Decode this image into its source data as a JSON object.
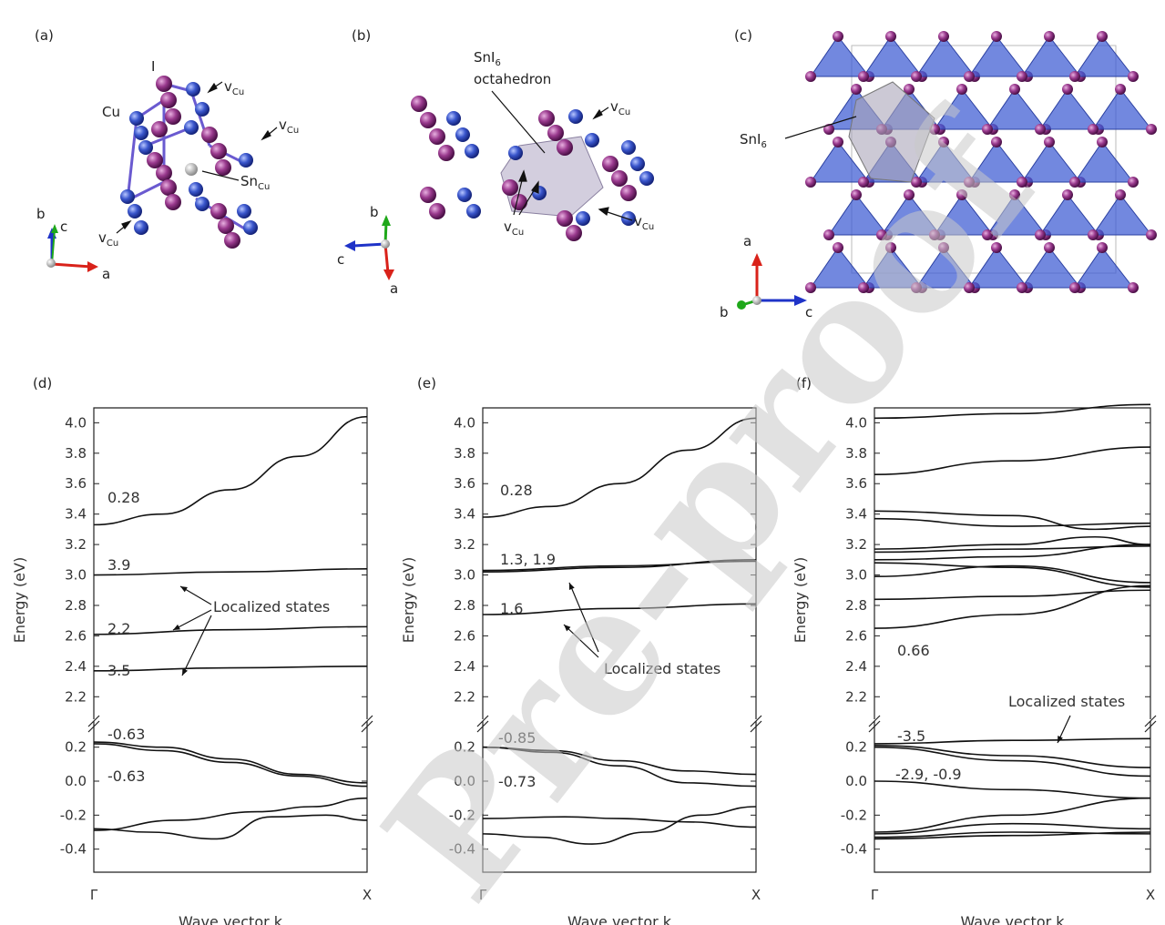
{
  "panels": {
    "a": "(a)",
    "b": "(b)",
    "c": "(c)",
    "d": "(d)",
    "e": "(e)",
    "f": "(f)"
  },
  "structure_a": {
    "label_I": "I",
    "label_Cu": "Cu",
    "vcu": "v",
    "vcu_sub": "Cu",
    "sncu": "Sn",
    "sncu_sub": "Cu",
    "axis_a": "a",
    "axis_b": "b",
    "axis_c": "c"
  },
  "structure_b": {
    "sni6_line1": "SnI",
    "sni6_sub": "6",
    "sni6_line2": "octahedron",
    "vcu": "v",
    "vcu_sub": "Cu",
    "axis_a": "a",
    "axis_b": "b",
    "axis_c": "c"
  },
  "structure_c": {
    "sni6": "SnI",
    "sni6_sub": "6",
    "axis_a": "a",
    "axis_b": "b",
    "axis_c": "c"
  },
  "watermark": "Pre-proof",
  "chart_data": [
    {
      "type": "line",
      "panel": "d",
      "xlabel": "Wave vector k",
      "ylabel": "Energy (eV)",
      "x_ticks": [
        "Γ",
        "X"
      ],
      "upper_yticks": [
        "2.2",
        "2.4",
        "2.6",
        "2.8",
        "3.0",
        "3.2",
        "3.4",
        "3.6",
        "3.8",
        "4.0"
      ],
      "lower_yticks": [
        "-0.4",
        "-0.2",
        "0.0",
        "0.2"
      ],
      "upper_ylim": [
        2.1,
        4.05
      ],
      "lower_ylim": [
        -0.45,
        0.3
      ],
      "axis_break": true,
      "annotations": [
        "0.28",
        "3.9",
        "2.2",
        "3.5",
        "-0.63",
        "-0.63"
      ],
      "localized_label": "Localized states",
      "series": [
        {
          "x": [
            0,
            0.25,
            0.5,
            0.75,
            1
          ],
          "values": [
            3.33,
            3.4,
            3.56,
            3.78,
            4.04
          ],
          "axis": "upper"
        },
        {
          "x": [
            0,
            0.5,
            1
          ],
          "values": [
            3.0,
            3.02,
            3.04
          ],
          "axis": "upper"
        },
        {
          "x": [
            0,
            0.5,
            1
          ],
          "values": [
            2.61,
            2.64,
            2.66
          ],
          "axis": "upper"
        },
        {
          "x": [
            0,
            0.5,
            1
          ],
          "values": [
            2.37,
            2.39,
            2.4
          ],
          "axis": "upper"
        },
        {
          "x": [
            0,
            0.25,
            0.5,
            0.75,
            1
          ],
          "values": [
            0.23,
            0.2,
            0.13,
            0.04,
            -0.01
          ],
          "axis": "lower"
        },
        {
          "x": [
            0,
            0.25,
            0.5,
            0.75,
            1
          ],
          "values": [
            0.22,
            0.18,
            0.11,
            0.03,
            -0.03
          ],
          "axis": "lower"
        },
        {
          "x": [
            0,
            0.2,
            0.45,
            0.65,
            0.85,
            1
          ],
          "values": [
            -0.28,
            -0.3,
            -0.34,
            -0.21,
            -0.2,
            -0.23
          ],
          "axis": "lower"
        },
        {
          "x": [
            0,
            0.3,
            0.6,
            0.8,
            1
          ],
          "values": [
            -0.29,
            -0.23,
            -0.18,
            -0.15,
            -0.1
          ],
          "axis": "lower"
        }
      ]
    },
    {
      "type": "line",
      "panel": "e",
      "xlabel": "Wave vector k",
      "ylabel": "Energy (eV)",
      "x_ticks": [
        "Γ",
        "X"
      ],
      "upper_yticks": [
        "2.2",
        "2.4",
        "2.6",
        "2.8",
        "3.0",
        "3.2",
        "3.4",
        "3.6",
        "3.8",
        "4.0"
      ],
      "lower_yticks": [
        "-0.4",
        "-0.2",
        "0.0",
        "0.2"
      ],
      "upper_ylim": [
        2.1,
        4.05
      ],
      "lower_ylim": [
        -0.45,
        0.3
      ],
      "axis_break": true,
      "annotations": [
        "0.28",
        "1.3, 1.9",
        "1.6",
        "-0.85",
        "-0.73"
      ],
      "localized_label": "Localized states",
      "series": [
        {
          "x": [
            0,
            0.25,
            0.5,
            0.75,
            1
          ],
          "values": [
            3.38,
            3.45,
            3.6,
            3.82,
            4.03
          ],
          "axis": "upper"
        },
        {
          "x": [
            0,
            0.5,
            1
          ],
          "values": [
            3.03,
            3.06,
            3.09
          ],
          "axis": "upper"
        },
        {
          "x": [
            0,
            0.5,
            1
          ],
          "values": [
            3.02,
            3.05,
            3.1
          ],
          "axis": "upper"
        },
        {
          "x": [
            0,
            0.5,
            1
          ],
          "values": [
            2.74,
            2.78,
            2.81
          ],
          "axis": "upper"
        },
        {
          "x": [
            0,
            0.25,
            0.5,
            0.75,
            1
          ],
          "values": [
            0.2,
            0.18,
            0.12,
            0.06,
            0.04
          ],
          "axis": "lower"
        },
        {
          "x": [
            0,
            0.25,
            0.5,
            0.75,
            1
          ],
          "values": [
            0.2,
            0.17,
            0.09,
            -0.01,
            -0.03
          ],
          "axis": "lower"
        },
        {
          "x": [
            0,
            0.3,
            0.5,
            0.75,
            1
          ],
          "values": [
            -0.22,
            -0.21,
            -0.22,
            -0.24,
            -0.27
          ],
          "axis": "lower"
        },
        {
          "x": [
            0,
            0.2,
            0.4,
            0.6,
            0.8,
            1
          ],
          "values": [
            -0.31,
            -0.33,
            -0.37,
            -0.3,
            -0.2,
            -0.15
          ],
          "axis": "lower"
        }
      ]
    },
    {
      "type": "line",
      "panel": "f",
      "xlabel": "Wave vector k",
      "ylabel": "Energy (eV)",
      "x_ticks": [
        "Γ",
        "X"
      ],
      "upper_yticks": [
        "2.2",
        "2.4",
        "2.6",
        "2.8",
        "3.0",
        "3.2",
        "3.4",
        "3.6",
        "3.8",
        "4.0"
      ],
      "lower_yticks": [
        "-0.4",
        "-0.2",
        "0.0",
        "0.2"
      ],
      "upper_ylim": [
        2.1,
        4.05
      ],
      "lower_ylim": [
        -0.45,
        0.3
      ],
      "axis_break": true,
      "annotations": [
        "0.66",
        "-3.5",
        "-2.9, -0.9"
      ],
      "localized_label": "Localized states",
      "series": [
        {
          "x": [
            0,
            0.5,
            1
          ],
          "values": [
            4.03,
            4.06,
            4.12
          ],
          "axis": "upper"
        },
        {
          "x": [
            0,
            0.5,
            1
          ],
          "values": [
            3.66,
            3.75,
            3.84
          ],
          "axis": "upper"
        },
        {
          "x": [
            0,
            0.5,
            0.8,
            1
          ],
          "values": [
            3.42,
            3.39,
            3.3,
            3.32
          ],
          "axis": "upper"
        },
        {
          "x": [
            0,
            0.5,
            1
          ],
          "values": [
            3.37,
            3.32,
            3.34
          ],
          "axis": "upper"
        },
        {
          "x": [
            0,
            0.5,
            0.8,
            1
          ],
          "values": [
            3.17,
            3.2,
            3.25,
            3.2
          ],
          "axis": "upper"
        },
        {
          "x": [
            0,
            0.5,
            1
          ],
          "values": [
            3.15,
            3.17,
            3.19
          ],
          "axis": "upper"
        },
        {
          "x": [
            0,
            0.5,
            1
          ],
          "values": [
            3.1,
            3.12,
            3.2
          ],
          "axis": "upper"
        },
        {
          "x": [
            0,
            0.5,
            1
          ],
          "values": [
            3.08,
            3.05,
            2.92
          ],
          "axis": "upper"
        },
        {
          "x": [
            0,
            0.5,
            1
          ],
          "values": [
            2.99,
            3.06,
            2.95
          ],
          "axis": "upper"
        },
        {
          "x": [
            0,
            0.5,
            1
          ],
          "values": [
            2.84,
            2.86,
            2.9
          ],
          "axis": "upper"
        },
        {
          "x": [
            0,
            0.5,
            1
          ],
          "values": [
            2.65,
            2.74,
            2.93
          ],
          "axis": "upper"
        },
        {
          "x": [
            0,
            0.5,
            1
          ],
          "values": [
            0.22,
            0.24,
            0.25
          ],
          "axis": "lower"
        },
        {
          "x": [
            0,
            0.5,
            1
          ],
          "values": [
            0.21,
            0.15,
            0.08
          ],
          "axis": "lower"
        },
        {
          "x": [
            0,
            0.5,
            1
          ],
          "values": [
            0.2,
            0.12,
            0.03
          ],
          "axis": "lower"
        },
        {
          "x": [
            0,
            0.5,
            1
          ],
          "values": [
            0.0,
            -0.05,
            -0.1
          ],
          "axis": "lower"
        },
        {
          "x": [
            0,
            0.5,
            1
          ],
          "values": [
            -0.3,
            -0.2,
            -0.1
          ],
          "axis": "lower"
        },
        {
          "x": [
            0,
            0.5,
            1
          ],
          "values": [
            -0.31,
            -0.25,
            -0.28
          ],
          "axis": "lower"
        },
        {
          "x": [
            0,
            0.5,
            1
          ],
          "values": [
            -0.33,
            -0.3,
            -0.31
          ],
          "axis": "lower"
        },
        {
          "x": [
            0,
            0.5,
            1
          ],
          "values": [
            -0.34,
            -0.32,
            -0.3
          ],
          "axis": "lower"
        }
      ]
    }
  ]
}
